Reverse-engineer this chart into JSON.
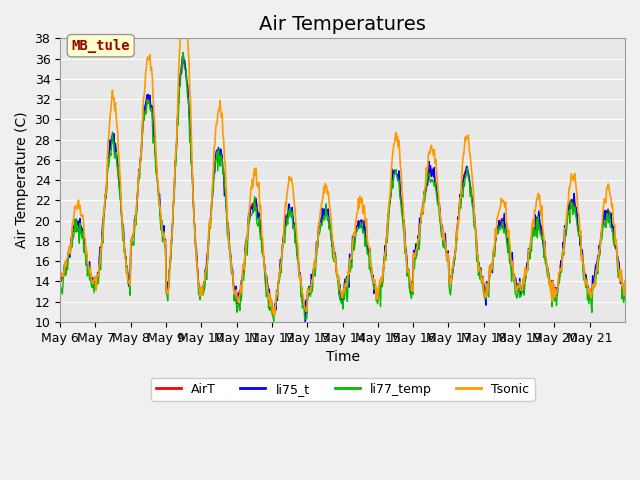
{
  "title": "Air Temperatures",
  "xlabel": "Time",
  "ylabel": "Air Temperature (C)",
  "ylim": [
    10,
    38
  ],
  "yticks": [
    10,
    12,
    14,
    16,
    18,
    20,
    22,
    24,
    26,
    28,
    30,
    32,
    34,
    36,
    38
  ],
  "xtick_labels": [
    "May 6",
    "May 7",
    "May 8",
    "May 9",
    "May 10",
    "May 11",
    "May 12",
    "May 13",
    "May 14",
    "May 15",
    "May 16",
    "May 17",
    "May 18",
    "May 19",
    "May 20",
    "May 21"
  ],
  "line_colors": {
    "AirT": "#ff0000",
    "li75_t": "#0000ff",
    "li77_temp": "#00bb00",
    "Tsonic": "#ff9900"
  },
  "legend_label_order": [
    "AirT",
    "li75_t",
    "li77_temp",
    "Tsonic"
  ],
  "annotation_text": "MB_tule",
  "annotation_color": "#990000",
  "annotation_bg": "#ffffcc",
  "plot_bg_color": "#e8e8e8",
  "title_fontsize": 14,
  "axis_fontsize": 10,
  "tick_fontsize": 9,
  "grid_color": "#ffffff",
  "num_days": 16,
  "points_per_day": 48,
  "day_mins": [
    14,
    14,
    18,
    13,
    13,
    12,
    11,
    13,
    13,
    13,
    17,
    14,
    13,
    13,
    13,
    13
  ],
  "day_maxs": [
    20,
    28,
    32,
    36,
    27,
    22,
    21,
    21,
    20,
    25,
    25,
    25,
    20,
    20,
    22,
    21
  ]
}
